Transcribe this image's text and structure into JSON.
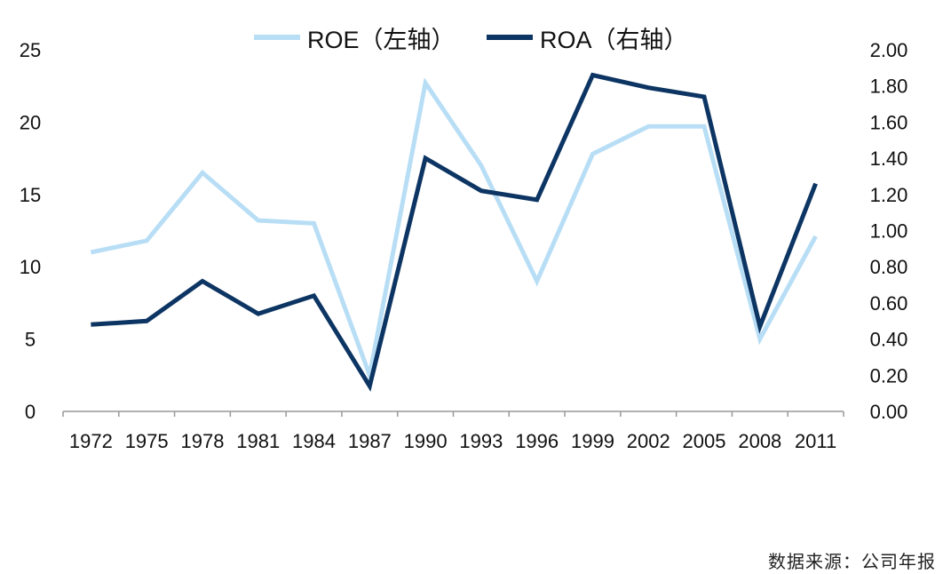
{
  "chart_data": {
    "type": "line",
    "categories": [
      "1972",
      "1975",
      "1978",
      "1981",
      "1984",
      "1987",
      "1990",
      "1993",
      "1996",
      "1999",
      "2002",
      "2005",
      "2008",
      "2011"
    ],
    "series": [
      {
        "name": "ROE（左轴）",
        "axis": "left",
        "color": "#b8def6",
        "values": [
          11.0,
          11.8,
          16.5,
          13.2,
          13.0,
          2.5,
          22.7,
          17.0,
          9.0,
          17.8,
          19.7,
          19.7,
          5.0,
          12.1
        ]
      },
      {
        "name": "ROA（右轴）",
        "axis": "right",
        "color": "#0d3563",
        "values": [
          0.48,
          0.5,
          0.72,
          0.54,
          0.64,
          0.14,
          1.4,
          1.22,
          1.17,
          1.86,
          1.79,
          1.74,
          0.47,
          1.26
        ]
      }
    ],
    "y_left": {
      "min": 0,
      "max": 25,
      "ticks": [
        "0",
        "5",
        "10",
        "15",
        "20",
        "25"
      ]
    },
    "y_right": {
      "min": 0,
      "max": 2.0,
      "ticks": [
        "0.00",
        "0.20",
        "0.40",
        "0.60",
        "0.80",
        "1.00",
        "1.20",
        "1.40",
        "1.60",
        "1.80",
        "2.00"
      ]
    },
    "grid": false,
    "legend_position": "top-center"
  },
  "source_note": "数据来源：公司年报"
}
